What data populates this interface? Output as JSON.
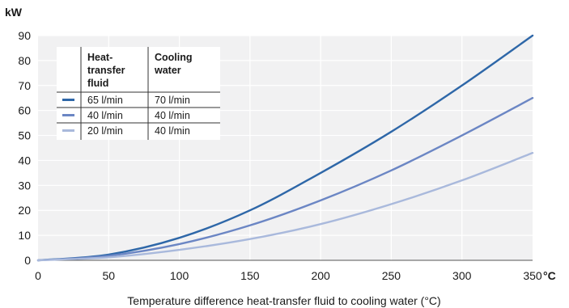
{
  "chart_data": {
    "type": "line",
    "ylabel": "kW",
    "xunit": "°C",
    "xlabel": "Temperature difference heat-transfer fluid to cooling water (°C)",
    "xlim": [
      0,
      350
    ],
    "ylim": [
      0,
      90
    ],
    "xticks": [
      0,
      50,
      100,
      150,
      200,
      250,
      300,
      350
    ],
    "yticks": [
      0,
      10,
      20,
      30,
      40,
      50,
      60,
      70,
      80,
      90
    ],
    "grid": true,
    "legend": {
      "placement": "top-left",
      "headers": [
        "Heat-",
        "transfer",
        "fluid",
        "Cooling",
        "water"
      ],
      "rows": [
        {
          "fluid": "65 l/min",
          "water": "70 l/min",
          "color": "#2e67a8"
        },
        {
          "fluid": "40 l/min",
          "water": "40 l/min",
          "color": "#6b86c4"
        },
        {
          "fluid": "20 l/min",
          "water": "40 l/min",
          "color": "#a9b9dc"
        }
      ]
    },
    "series": [
      {
        "color": "#2e67a8",
        "x": [
          0,
          50,
          100,
          150,
          200,
          250,
          300,
          350
        ],
        "y": [
          0,
          2.3,
          9,
          20,
          35,
          51.5,
          70,
          90
        ]
      },
      {
        "color": "#6b86c4",
        "x": [
          0,
          50,
          100,
          150,
          200,
          250,
          300,
          350
        ],
        "y": [
          0,
          1.8,
          6.5,
          14,
          24,
          36,
          50,
          65
        ]
      },
      {
        "color": "#a9b9dc",
        "x": [
          0,
          50,
          100,
          150,
          200,
          250,
          300,
          350
        ],
        "y": [
          0,
          1.2,
          4.2,
          8.5,
          14.5,
          22.5,
          32,
          43
        ]
      }
    ]
  }
}
